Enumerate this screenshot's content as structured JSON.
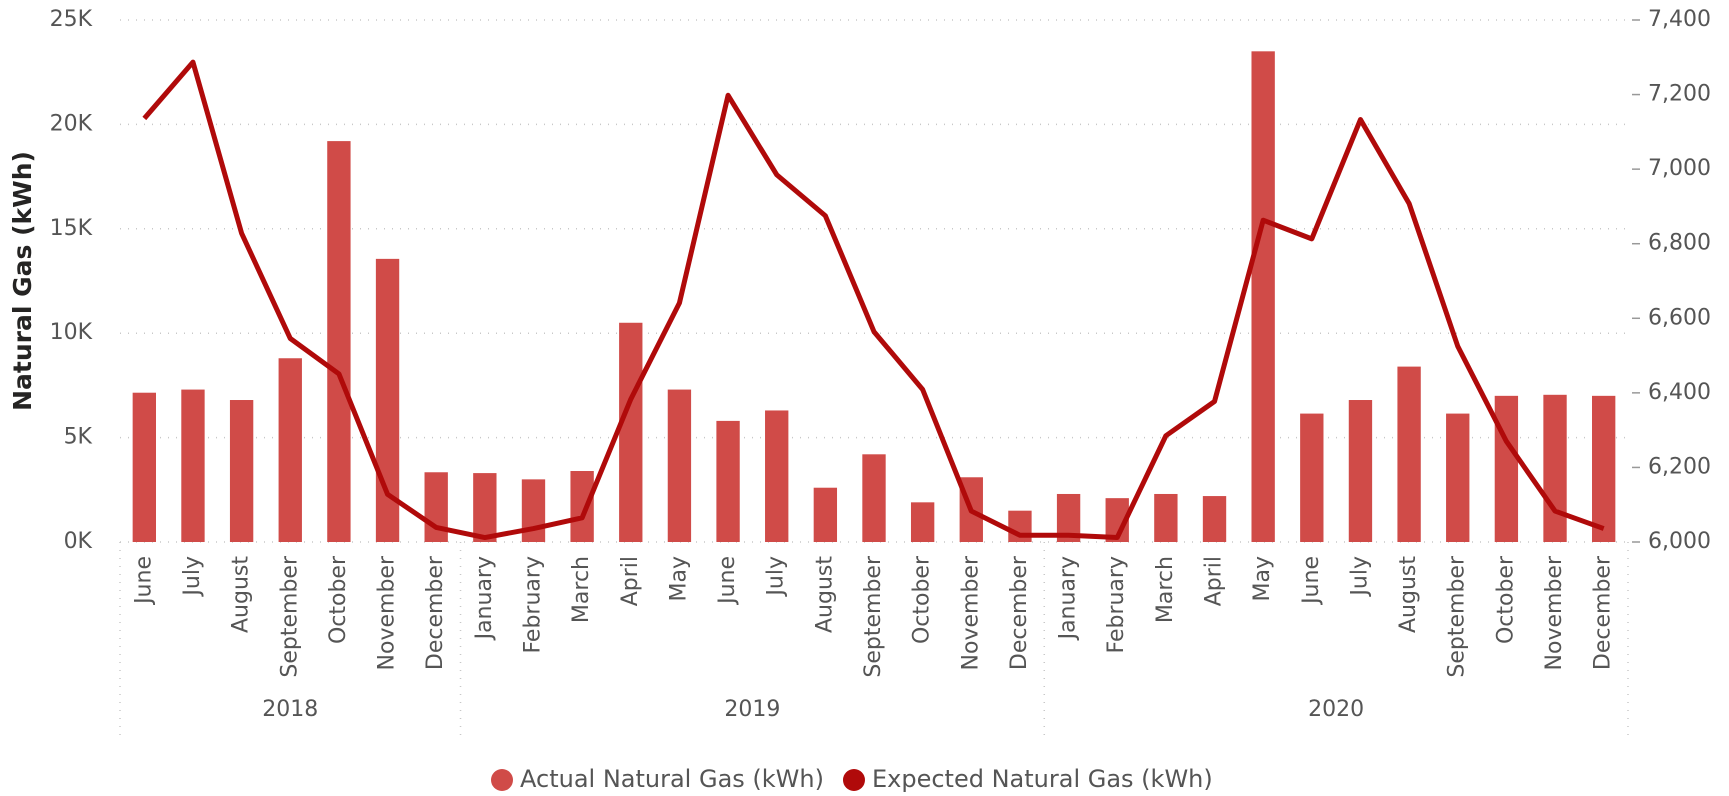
{
  "chart_data": {
    "type": "bar-line",
    "y_label": "Natural Gas (kWh)",
    "groups": [
      {
        "name": "2018",
        "categories": [
          "June",
          "July",
          "August",
          "September",
          "October",
          "November",
          "December"
        ]
      },
      {
        "name": "2019",
        "categories": [
          "January",
          "February",
          "March",
          "April",
          "May",
          "June",
          "July",
          "August",
          "September",
          "October",
          "November",
          "December"
        ]
      },
      {
        "name": "2020",
        "categories": [
          "January",
          "February",
          "March",
          "April",
          "May",
          "June",
          "July",
          "August",
          "September",
          "October",
          "November",
          "December"
        ]
      }
    ],
    "series": [
      {
        "name": "Actual Natural Gas (kWh)",
        "type": "bar",
        "color": "#d04b48",
        "values": [
          7150,
          7300,
          6800,
          8800,
          19200,
          13560,
          3340,
          3300,
          3000,
          3400,
          10500,
          7300,
          5800,
          6300,
          2600,
          4200,
          1900,
          3100,
          1500,
          2300,
          2100,
          2300,
          2200,
          23500,
          6150,
          6800,
          8400,
          6150,
          7000,
          7050,
          7000
        ]
      },
      {
        "name": "Expected Natural Gas (kWh)",
        "type": "line",
        "axis": "y2",
        "color": "#b00a0a",
        "values": [
          7136,
          7287,
          6828,
          6546,
          6451,
          6128,
          6039,
          6012,
          6036,
          6065,
          6383,
          6641,
          7198,
          6985,
          6875,
          6564,
          6409,
          6083,
          6018,
          6018,
          6012,
          6285,
          6377,
          6863,
          6813,
          7133,
          6908,
          6525,
          6270,
          6083,
          6036
        ]
      }
    ],
    "ylim": [
      0,
      25000
    ],
    "yticks": [
      {
        "value": 0,
        "label": "0K"
      },
      {
        "value": 5000,
        "label": "5K"
      },
      {
        "value": 10000,
        "label": "10K"
      },
      {
        "value": 15000,
        "label": "15K"
      },
      {
        "value": 20000,
        "label": "20K"
      },
      {
        "value": 25000,
        "label": "25K"
      }
    ],
    "y2lim": [
      6000,
      7400
    ],
    "y2ticks": [
      {
        "value": 6000,
        "label": "6,000"
      },
      {
        "value": 6200,
        "label": "6,200"
      },
      {
        "value": 6400,
        "label": "6,400"
      },
      {
        "value": 6600,
        "label": "6,600"
      },
      {
        "value": 6800,
        "label": "6,800"
      },
      {
        "value": 7000,
        "label": "7,000"
      },
      {
        "value": 7200,
        "label": "7,200"
      },
      {
        "value": 7400,
        "label": "7,400"
      }
    ],
    "grid": true,
    "legend": "bottom"
  }
}
